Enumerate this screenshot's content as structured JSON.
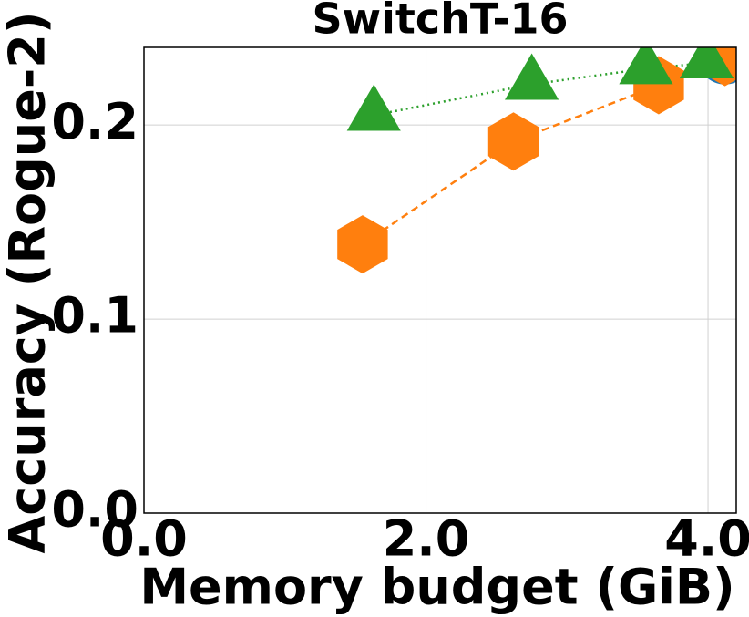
{
  "chart_data": {
    "type": "scatter",
    "title": "SwitchT-16",
    "x_label": "Memory budget (GiB)",
    "y_label": "Accuracy (Rogue-2)",
    "xlim": [
      0,
      4.2
    ],
    "ylim": [
      0,
      0.24
    ],
    "xticks": [
      {
        "value": 0,
        "label": "0.0"
      },
      {
        "value": 2,
        "label": "2.0"
      },
      {
        "value": 4,
        "label": "4.0"
      }
    ],
    "yticks": [
      {
        "value": 0,
        "label": "0.0"
      },
      0.1,
      0.2
    ],
    "grid": true,
    "series": [
      {
        "color": "#1f77b4",
        "marker": "circle",
        "line": "none",
        "x": [
          4.12
        ],
        "values": [
          0.235
        ]
      },
      {
        "color": "#ff7f0e",
        "marker": "hexagon",
        "line": "dashed",
        "x": [
          1.55,
          2.62,
          3.65,
          4.12
        ],
        "values": [
          0.1385,
          0.1915,
          0.2205,
          0.235
        ]
      },
      {
        "color": "#2ca02c",
        "marker": "triangle",
        "line": "dotted",
        "x": [
          1.63,
          2.75,
          3.56,
          3.99
        ],
        "values": [
          0.205,
          0.221,
          0.229,
          0.232
        ]
      }
    ]
  }
}
